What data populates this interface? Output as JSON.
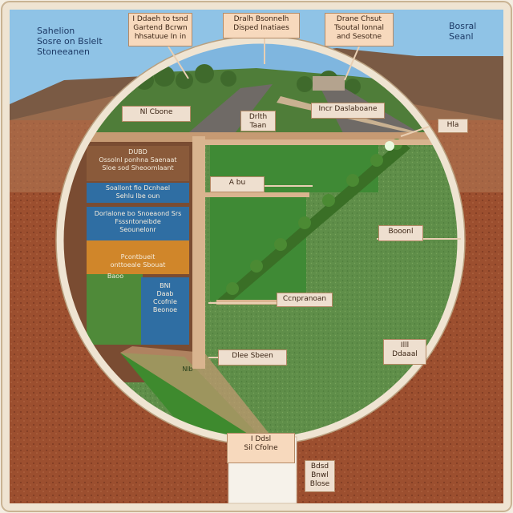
{
  "corner_left": "Sahelion\nSosre on Bslelt\nStoneeanen",
  "corner_right": "Bosral\nSeanl",
  "top_labels": [
    "I Ddaeh to tsnd\nGartend Bcrwn\nhhsatuue In in",
    "Dralh Bsonnelh\nDisped Inatiaes",
    "Drane Chsut\nTsoutal Ionnal\nand Sesotne"
  ],
  "road_label": "Nl Cbone",
  "middle_label": "Drlth\nTaan",
  "sign_label": "Incr Daslaboane",
  "right_small_label": "Hla",
  "alum_label": "A bu",
  "center_label": "Ccnpranoan",
  "lower_center_label": "Dlee Sbeen",
  "right_label": "Booonl",
  "right_lower_label": "Illl\nDdaaal",
  "bottom_label": "I Ddsl\nSil Cfolne",
  "bottom_right_label": "Bdsd\nBnwl\nBlose",
  "strata_labels": [
    "DUBD\nOssolnl ponhna Saenaat\nSloe sod Sheoomlaant",
    "Soallont fio Dcnhael\nSehlu lbe oun",
    "Dorlalone bo Snoeaond Srs\nFsssntoneibde\nSeounelonr",
    "Pcontbueit\nonttoeale Sbouat",
    "Baoo",
    "BNI\nDaab\nCcofnle\nBeonoe",
    "Nlb"
  ],
  "colors": {
    "soil": "#9c4f2f",
    "grass": "#5b8a45",
    "sky": "#8fc3e6",
    "stratum_brown": "#8a5a3a",
    "stratum_blue": "#2f6ea3",
    "stratum_orange": "#d0862a",
    "frame": "#efe4d2"
  },
  "icons": [
    "tree-icon",
    "building-icon"
  ]
}
